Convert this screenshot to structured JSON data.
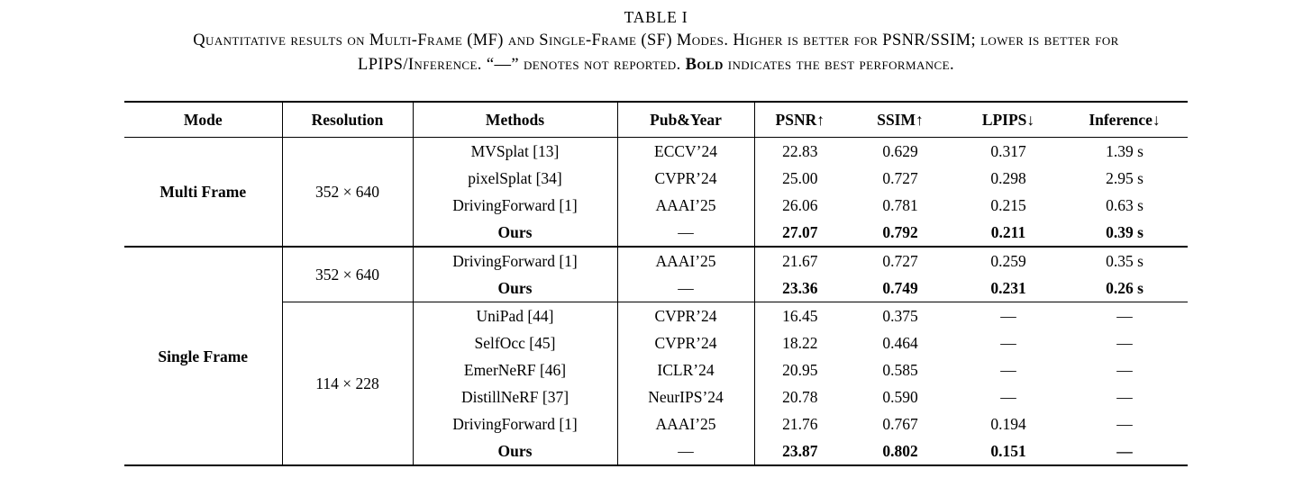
{
  "title": "TABLE I",
  "caption": {
    "line1": "Quantitative results on Multi-Frame (MF) and Single-Frame (SF) Modes. Higher is better for PSNR/SSIM; lower is better for",
    "line2_pre": "LPIPS/Inference. “—” denotes not reported. ",
    "line2_bold": "Bold",
    "line2_post": " indicates the best performance."
  },
  "table": {
    "headers": [
      "Mode",
      "Resolution",
      "Methods",
      "Pub&Year",
      "PSNR↑",
      "SSIM↑",
      "LPIPS↓",
      "Inference↓"
    ],
    "groups": [
      {
        "mode": "Multi Frame",
        "subgroups": [
          {
            "resolution": "352 × 640",
            "rows": [
              {
                "method": "MVSplat [13]",
                "pub": "ECCV’24",
                "psnr": "22.83",
                "ssim": "0.629",
                "lpips": "0.317",
                "inference": "1.39 s",
                "bold": false
              },
              {
                "method": "pixelSplat [34]",
                "pub": "CVPR’24",
                "psnr": "25.00",
                "ssim": "0.727",
                "lpips": "0.298",
                "inference": "2.95 s",
                "bold": false
              },
              {
                "method": "DrivingForward [1]",
                "pub": "AAAI’25",
                "psnr": "26.06",
                "ssim": "0.781",
                "lpips": "0.215",
                "inference": "0.63 s",
                "bold": false
              },
              {
                "method": "Ours",
                "pub": "—",
                "psnr": "27.07",
                "ssim": "0.792",
                "lpips": "0.211",
                "inference": "0.39 s",
                "bold": true
              }
            ]
          }
        ]
      },
      {
        "mode": "Single Frame",
        "subgroups": [
          {
            "resolution": "352 × 640",
            "rows": [
              {
                "method": "DrivingForward [1]",
                "pub": "AAAI’25",
                "psnr": "21.67",
                "ssim": "0.727",
                "lpips": "0.259",
                "inference": "0.35 s",
                "bold": false
              },
              {
                "method": "Ours",
                "pub": "—",
                "psnr": "23.36",
                "ssim": "0.749",
                "lpips": "0.231",
                "inference": "0.26 s",
                "bold": true
              }
            ]
          },
          {
            "resolution": "114 × 228",
            "rows": [
              {
                "method": "UniPad [44]",
                "pub": "CVPR’24",
                "psnr": "16.45",
                "ssim": "0.375",
                "lpips": "—",
                "inference": "—",
                "bold": false
              },
              {
                "method": "SelfOcc [45]",
                "pub": "CVPR’24",
                "psnr": "18.22",
                "ssim": "0.464",
                "lpips": "—",
                "inference": "—",
                "bold": false
              },
              {
                "method": "EmerNeRF [46]",
                "pub": "ICLR’24",
                "psnr": "20.95",
                "ssim": "0.585",
                "lpips": "—",
                "inference": "—",
                "bold": false
              },
              {
                "method": "DistillNeRF [37]",
                "pub": "NeurIPS’24",
                "psnr": "20.78",
                "ssim": "0.590",
                "lpips": "—",
                "inference": "—",
                "bold": false
              },
              {
                "method": "DrivingForward [1]",
                "pub": "AAAI’25",
                "psnr": "21.76",
                "ssim": "0.767",
                "lpips": "0.194",
                "inference": "—",
                "bold": false
              },
              {
                "method": "Ours",
                "pub": "—",
                "psnr": "23.87",
                "ssim": "0.802",
                "lpips": "0.151",
                "inference": "—",
                "bold": true
              }
            ]
          }
        ]
      }
    ]
  }
}
